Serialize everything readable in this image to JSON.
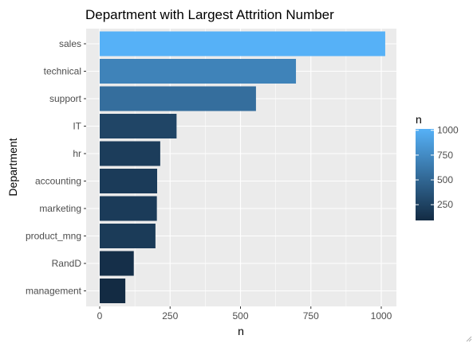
{
  "chart_data": {
    "type": "bar",
    "orientation": "horizontal",
    "title": "Department with Largest Attrition Number",
    "xlabel": "n",
    "ylabel": "Department",
    "categories": [
      "sales",
      "technical",
      "support",
      "IT",
      "hr",
      "accounting",
      "marketing",
      "product_mng",
      "RandD",
      "management"
    ],
    "values": [
      1014,
      697,
      555,
      273,
      215,
      204,
      203,
      198,
      121,
      91
    ],
    "xlim": [
      0,
      1014
    ],
    "xticks": [
      "0",
      "250",
      "500",
      "750",
      "1000"
    ],
    "grid": true,
    "legend": {
      "title": "n",
      "position": "right",
      "labels": [
        "1000",
        "750",
        "500",
        "250"
      ],
      "color_low": "#132B43",
      "color_high": "#56B1F7"
    },
    "panel_background": "#EBEBEB",
    "gridline_color": "#FFFFFF"
  }
}
